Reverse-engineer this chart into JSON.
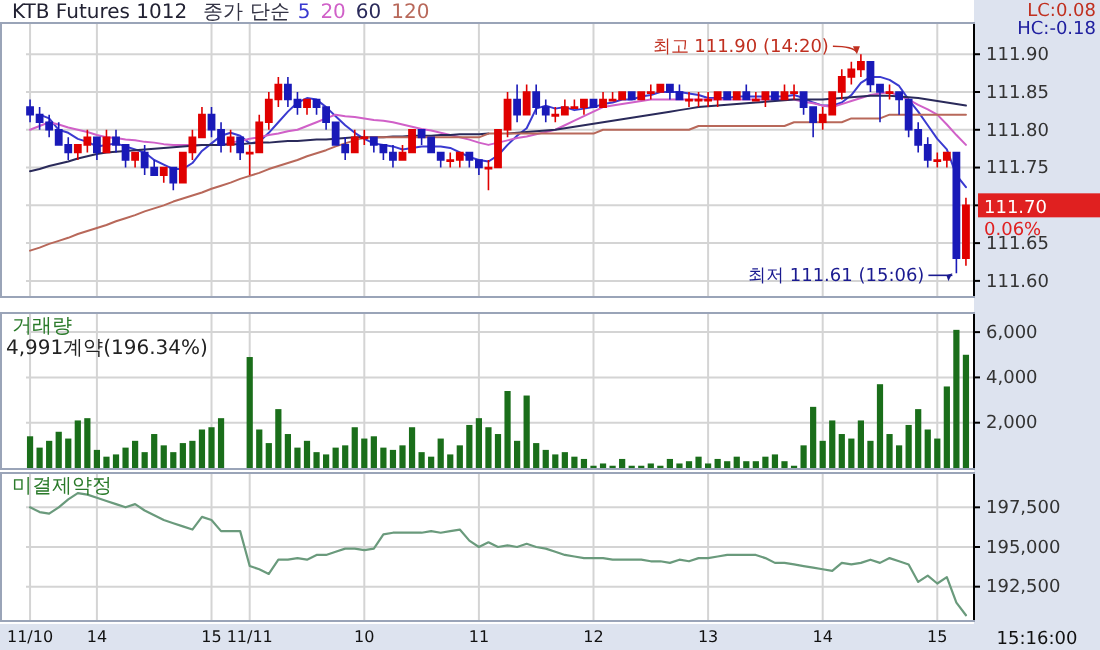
{
  "chart_data": [
    {
      "type": "candlestick",
      "title": "KTB Futures 1012",
      "legend_title": "종가 단순",
      "legend": "top left",
      "grid": true,
      "tick_labels": "y",
      "categories": [
        null,
        null,
        null,
        null,
        null,
        null,
        null,
        null,
        null,
        null,
        null,
        null,
        null,
        null,
        null,
        null,
        null,
        null,
        null,
        null,
        null,
        null,
        null,
        null,
        null,
        null,
        null,
        null,
        null,
        null,
        null,
        null,
        null,
        null,
        null,
        null,
        null,
        null,
        null,
        null,
        null,
        null,
        null,
        null,
        null,
        null,
        null,
        null,
        null,
        null,
        null,
        null,
        null,
        null,
        null,
        null,
        null,
        null,
        null,
        null,
        null,
        null,
        null,
        null,
        null,
        null,
        null,
        null,
        null,
        null,
        null,
        null,
        null,
        null,
        null,
        null,
        null,
        null,
        null,
        null,
        null,
        null,
        null,
        null,
        null,
        null,
        null,
        null,
        null,
        null,
        null,
        null,
        null,
        null,
        null,
        null,
        null,
        null,
        null
      ],
      "ylim": [
        111.58,
        111.94
      ],
      "yticks": [
        {
          "value": 111.6,
          "label": "111.60"
        },
        {
          "value": 111.65,
          "label": "111.65"
        },
        {
          "value": 111.7,
          "label": null
        },
        {
          "value": 111.75,
          "label": "111.75"
        },
        {
          "value": 111.8,
          "label": "111.80"
        },
        {
          "value": 111.85,
          "label": "111.85"
        },
        {
          "value": 111.9,
          "label": "111.90"
        }
      ],
      "ohlc": [
        [
          111.83,
          111.84,
          111.81,
          111.82
        ],
        [
          111.82,
          111.83,
          111.8,
          111.81
        ],
        [
          111.81,
          111.82,
          111.79,
          111.8
        ],
        [
          111.8,
          111.81,
          111.78,
          111.78
        ],
        [
          111.78,
          111.79,
          111.76,
          111.77
        ],
        [
          111.77,
          111.78,
          111.76,
          111.78
        ],
        [
          111.78,
          111.8,
          111.77,
          111.79
        ],
        [
          111.79,
          111.79,
          111.76,
          111.77
        ],
        [
          111.77,
          111.8,
          111.77,
          111.79
        ],
        [
          111.79,
          111.8,
          111.77,
          111.78
        ],
        [
          111.78,
          111.78,
          111.75,
          111.76
        ],
        [
          111.76,
          111.77,
          111.75,
          111.77
        ],
        [
          111.77,
          111.78,
          111.74,
          111.75
        ],
        [
          111.75,
          111.76,
          111.74,
          111.74
        ],
        [
          111.74,
          111.75,
          111.73,
          111.75
        ],
        [
          111.75,
          111.75,
          111.72,
          111.73
        ],
        [
          111.73,
          111.77,
          111.73,
          111.77
        ],
        [
          111.77,
          111.8,
          111.76,
          111.79
        ],
        [
          111.79,
          111.83,
          111.79,
          111.82
        ],
        [
          111.82,
          111.83,
          111.79,
          111.8
        ],
        [
          111.8,
          111.81,
          111.77,
          111.78
        ],
        [
          111.78,
          111.8,
          111.77,
          111.79
        ],
        [
          111.79,
          111.79,
          111.76,
          111.77
        ],
        [
          111.77,
          111.78,
          111.74,
          111.77
        ],
        [
          111.77,
          111.82,
          111.77,
          111.81
        ],
        [
          111.81,
          111.85,
          111.8,
          111.84
        ],
        [
          111.84,
          111.87,
          111.83,
          111.86
        ],
        [
          111.86,
          111.87,
          111.83,
          111.84
        ],
        [
          111.84,
          111.85,
          111.82,
          111.83
        ],
        [
          111.83,
          111.84,
          111.82,
          111.84
        ],
        [
          111.84,
          111.84,
          111.82,
          111.83
        ],
        [
          111.83,
          111.83,
          111.8,
          111.81
        ],
        [
          111.81,
          111.81,
          111.78,
          111.78
        ],
        [
          111.78,
          111.79,
          111.76,
          111.77
        ],
        [
          111.77,
          111.8,
          111.77,
          111.79
        ],
        [
          111.79,
          111.8,
          111.78,
          111.79
        ],
        [
          111.79,
          111.79,
          111.77,
          111.78
        ],
        [
          111.78,
          111.78,
          111.76,
          111.77
        ],
        [
          111.77,
          111.78,
          111.75,
          111.76
        ],
        [
          111.76,
          111.78,
          111.76,
          111.77
        ],
        [
          111.77,
          111.8,
          111.77,
          111.8
        ],
        [
          111.8,
          111.8,
          111.78,
          111.79
        ],
        [
          111.79,
          111.79,
          111.77,
          111.77
        ],
        [
          111.77,
          111.77,
          111.75,
          111.76
        ],
        [
          111.76,
          111.77,
          111.75,
          111.76
        ],
        [
          111.76,
          111.77,
          111.75,
          111.77
        ],
        [
          111.77,
          111.77,
          111.75,
          111.76
        ],
        [
          111.76,
          111.76,
          111.74,
          111.75
        ],
        [
          111.75,
          111.76,
          111.72,
          111.75
        ],
        [
          111.75,
          111.8,
          111.75,
          111.8
        ],
        [
          111.8,
          111.85,
          111.79,
          111.84
        ],
        [
          111.84,
          111.86,
          111.81,
          111.82
        ],
        [
          111.82,
          111.86,
          111.82,
          111.85
        ],
        [
          111.85,
          111.86,
          111.82,
          111.83
        ],
        [
          111.83,
          111.84,
          111.81,
          111.82
        ],
        [
          111.82,
          111.83,
          111.81,
          111.82
        ],
        [
          111.82,
          111.84,
          111.82,
          111.83
        ],
        [
          111.83,
          111.84,
          111.83,
          111.83
        ],
        [
          111.83,
          111.84,
          111.82,
          111.84
        ],
        [
          111.84,
          111.84,
          111.83,
          111.83
        ],
        [
          111.83,
          111.85,
          111.83,
          111.84
        ],
        [
          111.84,
          111.85,
          111.84,
          111.84
        ],
        [
          111.84,
          111.85,
          111.84,
          111.85
        ],
        [
          111.85,
          111.85,
          111.84,
          111.84
        ],
        [
          111.84,
          111.85,
          111.84,
          111.85
        ],
        [
          111.85,
          111.86,
          111.84,
          111.85
        ],
        [
          111.85,
          111.86,
          111.85,
          111.86
        ],
        [
          111.86,
          111.86,
          111.84,
          111.85
        ],
        [
          111.85,
          111.86,
          111.84,
          111.84
        ],
        [
          111.84,
          111.85,
          111.83,
          111.84
        ],
        [
          111.84,
          111.85,
          111.83,
          111.84
        ],
        [
          111.84,
          111.85,
          111.83,
          111.84
        ],
        [
          111.84,
          111.85,
          111.83,
          111.85
        ],
        [
          111.85,
          111.85,
          111.84,
          111.84
        ],
        [
          111.84,
          111.85,
          111.84,
          111.85
        ],
        [
          111.85,
          111.86,
          111.84,
          111.84
        ],
        [
          111.84,
          111.85,
          111.84,
          111.84
        ],
        [
          111.84,
          111.85,
          111.83,
          111.85
        ],
        [
          111.85,
          111.85,
          111.84,
          111.84
        ],
        [
          111.84,
          111.86,
          111.84,
          111.85
        ],
        [
          111.85,
          111.86,
          111.84,
          111.85
        ],
        [
          111.85,
          111.85,
          111.82,
          111.83
        ],
        [
          111.83,
          111.83,
          111.79,
          111.81
        ],
        [
          111.81,
          111.83,
          111.8,
          111.82
        ],
        [
          111.82,
          111.85,
          111.82,
          111.85
        ],
        [
          111.85,
          111.88,
          111.84,
          111.87
        ],
        [
          111.87,
          111.89,
          111.86,
          111.88
        ],
        [
          111.88,
          111.9,
          111.87,
          111.89
        ],
        [
          111.89,
          111.89,
          111.85,
          111.86
        ],
        [
          111.86,
          111.86,
          111.81,
          111.85
        ],
        [
          111.85,
          111.86,
          111.84,
          111.85
        ],
        [
          111.85,
          111.85,
          111.82,
          111.84
        ],
        [
          111.84,
          111.84,
          111.79,
          111.8
        ],
        [
          111.8,
          111.81,
          111.77,
          111.78
        ],
        [
          111.78,
          111.79,
          111.75,
          111.76
        ],
        [
          111.76,
          111.77,
          111.75,
          111.76
        ],
        [
          111.76,
          111.77,
          111.75,
          111.77
        ],
        [
          111.77,
          111.77,
          111.61,
          111.63
        ],
        [
          111.63,
          111.71,
          111.62,
          111.7
        ]
      ],
      "series": [
        {
          "name": "5",
          "type": "line",
          "color": "#3a3ad0",
          "values": [
            null,
            111.82,
            111.815,
            111.8,
            111.796,
            111.788,
            111.784,
            111.778,
            111.78,
            111.782,
            111.778,
            111.774,
            111.77,
            111.76,
            111.754,
            111.748,
            111.748,
            111.756,
            111.772,
            111.782,
            111.792,
            111.796,
            111.792,
            111.782,
            111.784,
            111.796,
            111.81,
            111.824,
            111.836,
            111.842,
            111.84,
            111.83,
            111.818,
            111.806,
            111.796,
            111.788,
            111.782,
            111.78,
            111.778,
            111.774,
            111.776,
            111.778,
            111.778,
            111.778,
            111.776,
            111.77,
            111.764,
            111.76,
            111.758,
            111.766,
            111.78,
            111.792,
            111.802,
            111.828,
            111.832,
            111.828,
            111.83,
            111.826,
            111.828,
            111.83,
            111.834,
            111.836,
            111.84,
            111.84,
            111.844,
            111.846,
            111.85,
            111.85,
            111.85,
            111.848,
            111.846,
            111.842,
            111.842,
            111.842,
            111.844,
            111.844,
            111.844,
            111.844,
            111.844,
            111.844,
            111.846,
            111.842,
            111.836,
            111.832,
            111.832,
            111.836,
            111.846,
            111.862,
            111.87,
            111.87,
            111.866,
            111.858,
            111.84,
            111.824,
            111.806,
            111.788,
            111.774,
            111.74,
            111.724
          ]
        },
        {
          "name": "20",
          "type": "line",
          "color": "#d060c8",
          "values": [
            111.8,
            111.805,
            111.81,
            111.807,
            111.803,
            111.8,
            111.797,
            111.793,
            111.79,
            111.789,
            111.787,
            111.786,
            111.784,
            111.783,
            111.781,
            111.78,
            111.78,
            111.78,
            111.78,
            111.78,
            111.78,
            111.783,
            111.785,
            111.788,
            111.79,
            111.793,
            111.795,
            111.798,
            111.8,
            111.805,
            111.81,
            111.815,
            111.82,
            111.818,
            111.817,
            111.815,
            111.813,
            111.812,
            111.81,
            111.807,
            111.804,
            111.801,
            111.799,
            111.796,
            111.793,
            111.79,
            111.787,
            111.783,
            111.78,
            111.783,
            111.786,
            111.789,
            111.791,
            111.794,
            111.797,
            111.8,
            111.806,
            111.812,
            111.818,
            111.824,
            111.83,
            111.832,
            111.834,
            111.836,
            111.838,
            111.84,
            111.84,
            111.84,
            111.84,
            111.84,
            111.84,
            111.84,
            111.84,
            111.84,
            111.84,
            111.84,
            111.84,
            111.84,
            111.84,
            111.84,
            111.84,
            111.837,
            111.835,
            111.832,
            111.83,
            111.834,
            111.838,
            111.842,
            111.846,
            111.848,
            111.85,
            111.845,
            111.84,
            111.833,
            111.827,
            111.82,
            111.807,
            111.793,
            111.78
          ]
        },
        {
          "name": "60",
          "type": "line",
          "color": "#2a2a5a",
          "values": [
            111.745,
            111.748,
            111.752,
            111.755,
            111.758,
            111.762,
            111.765,
            111.768,
            111.77,
            111.771,
            111.772,
            111.773,
            111.774,
            111.775,
            111.776,
            111.777,
            111.778,
            111.779,
            111.78,
            111.78,
            111.78,
            111.781,
            111.781,
            111.782,
            111.783,
            111.783,
            111.784,
            111.785,
            111.785,
            111.786,
            111.787,
            111.787,
            111.788,
            111.789,
            111.79,
            111.79,
            111.79,
            111.79,
            111.791,
            111.791,
            111.792,
            111.792,
            111.792,
            111.793,
            111.793,
            111.794,
            111.794,
            111.794,
            111.795,
            null,
            111.795,
            111.796,
            111.797,
            111.798,
            111.799,
            111.8,
            111.802,
            111.804,
            111.806,
            111.808,
            111.81,
            111.812,
            111.814,
            111.816,
            111.818,
            111.82,
            111.822,
            111.824,
            111.826,
            111.828,
            111.83,
            111.831,
            111.832,
            111.833,
            111.834,
            111.835,
            111.836,
            111.837,
            111.838,
            111.839,
            111.84,
            111.84,
            111.84,
            111.84,
            111.841,
            111.842,
            111.843,
            111.844,
            111.845,
            111.845,
            111.845,
            111.844,
            111.843,
            111.842,
            111.84,
            111.838,
            111.836,
            111.834,
            111.832
          ]
        },
        {
          "name": "120",
          "type": "line",
          "color": "#b8685a",
          "values": [
            111.64,
            111.644,
            111.649,
            111.653,
            111.657,
            111.662,
            111.666,
            111.67,
            111.674,
            111.679,
            111.683,
            111.687,
            111.692,
            111.696,
            111.7,
            111.705,
            111.709,
            111.713,
            111.717,
            111.722,
            111.726,
            111.73,
            111.735,
            111.739,
            111.743,
            111.748,
            111.752,
            111.756,
            111.76,
            111.765,
            111.769,
            111.773,
            111.778,
            111.782,
            111.786,
            111.79,
            111.79,
            111.79,
            111.79,
            111.79,
            111.79,
            111.79,
            111.79,
            111.79,
            111.79,
            111.79,
            111.79,
            111.79,
            111.795,
            111.795,
            111.795,
            111.795,
            111.795,
            111.795,
            111.795,
            111.795,
            111.795,
            111.795,
            111.795,
            111.795,
            111.8,
            111.8,
            111.8,
            111.8,
            111.8,
            111.8,
            111.8,
            111.8,
            111.8,
            111.8,
            111.805,
            111.805,
            111.805,
            111.805,
            111.805,
            111.805,
            111.805,
            111.805,
            111.805,
            111.805,
            111.81,
            111.81,
            111.81,
            111.81,
            111.81,
            111.81,
            111.815,
            111.815,
            111.815,
            111.815,
            111.82,
            111.82,
            111.82,
            111.82,
            111.82,
            111.82,
            111.82,
            111.82,
            111.82
          ]
        }
      ],
      "annotations": [
        "최고 111.90 (14:20)",
        "최저 111.61 (15:06)",
        "111.70",
        "0.06%",
        "LC:0.08",
        "HC:-0.18"
      ]
    },
    {
      "type": "bar",
      "title": "거래량",
      "subtitle": "4,991계약(196.34%)",
      "grid": true,
      "tick_labels": "y",
      "color": "#1a6e1a",
      "categories": [
        null,
        null,
        null,
        null,
        null,
        null,
        null,
        null,
        null,
        null,
        null,
        null,
        null,
        null,
        null,
        null,
        null,
        null,
        null,
        null,
        null,
        null,
        null,
        null,
        null,
        null,
        null,
        null,
        null,
        null,
        null,
        null,
        null,
        null,
        null,
        null,
        null,
        null,
        null,
        null,
        null,
        null,
        null,
        null,
        null,
        null,
        null,
        null,
        null,
        null,
        null,
        null,
        null,
        null,
        null,
        null,
        null,
        null,
        null,
        null,
        null,
        null,
        null,
        null,
        null,
        null,
        null,
        null,
        null,
        null,
        null,
        null,
        null,
        null,
        null,
        null,
        null,
        null,
        null,
        null,
        null,
        null,
        null,
        null,
        null,
        null,
        null,
        null,
        null,
        null,
        null,
        null,
        null,
        null,
        null,
        null,
        null,
        null,
        null
      ],
      "ylim": [
        0,
        6800
      ],
      "yticks": [
        {
          "value": 2000,
          "label": "2,000"
        },
        {
          "value": 4000,
          "label": "4,000"
        },
        {
          "value": 6000,
          "label": "6,000"
        }
      ],
      "values": [
        1400,
        900,
        1200,
        1600,
        1300,
        2100,
        2200,
        800,
        500,
        600,
        900,
        1200,
        700,
        1500,
        1000,
        700,
        1100,
        1200,
        1700,
        1800,
        2200,
        0,
        0,
        4900,
        1700,
        1100,
        2600,
        1500,
        900,
        1200,
        700,
        600,
        900,
        1000,
        1800,
        1300,
        1400,
        900,
        800,
        1000,
        1800,
        700,
        500,
        1300,
        600,
        1000,
        1900,
        2200,
        1800,
        1500,
        3400,
        1200,
        3200,
        1100,
        800,
        600,
        700,
        500,
        400,
        100,
        200,
        100,
        400,
        100,
        100,
        200,
        100,
        400,
        200,
        300,
        500,
        200,
        400,
        300,
        500,
        300,
        300,
        500,
        600,
        300,
        100,
        1000,
        2700,
        1200,
        2100,
        1500,
        1300,
        2100,
        1200,
        3700,
        1500,
        1000,
        1900,
        2600,
        1700,
        1300,
        3600,
        6100,
        5000
      ]
    },
    {
      "type": "line",
      "title": "미결제약정",
      "grid": true,
      "color": "#6a9a7c",
      "categories": [
        "11/10",
        null,
        null,
        null,
        null,
        null,
        null,
        "14",
        null,
        null,
        null,
        null,
        null,
        null,
        null,
        null,
        null,
        null,
        null,
        "15",
        null,
        null,
        null,
        "11/11",
        null,
        null,
        null,
        null,
        null,
        null,
        null,
        null,
        null,
        null,
        null,
        "10",
        null,
        null,
        null,
        null,
        null,
        null,
        null,
        null,
        null,
        null,
        null,
        "11",
        null,
        null,
        null,
        null,
        null,
        null,
        null,
        null,
        null,
        null,
        null,
        "12",
        null,
        null,
        null,
        null,
        null,
        null,
        null,
        null,
        null,
        null,
        null,
        "13",
        null,
        null,
        null,
        null,
        null,
        null,
        null,
        null,
        null,
        null,
        null,
        "14",
        null,
        null,
        null,
        null,
        null,
        null,
        null,
        null,
        null,
        null,
        null,
        "15",
        null,
        null,
        null
      ],
      "ylim": [
        190400,
        199600
      ],
      "yticks": [
        {
          "value": 192500,
          "label": "192,500"
        },
        {
          "value": 195000,
          "label": "195,000"
        },
        {
          "value": 197500,
          "label": "197,500"
        }
      ],
      "values": [
        197500,
        197200,
        197100,
        197500,
        198000,
        198400,
        198300,
        198100,
        197900,
        197700,
        197500,
        197700,
        197300,
        197000,
        196700,
        196500,
        196300,
        196100,
        196900,
        196700,
        196000,
        196000,
        196000,
        193800,
        193600,
        193300,
        194200,
        194200,
        194300,
        194200,
        194500,
        194500,
        194700,
        194900,
        194900,
        194800,
        194900,
        195800,
        195900,
        195900,
        195900,
        195900,
        196000,
        195900,
        196000,
        196100,
        195400,
        195000,
        195300,
        195000,
        195100,
        195000,
        195200,
        195000,
        194900,
        194700,
        194500,
        194400,
        194300,
        194300,
        194300,
        194200,
        194200,
        194200,
        194200,
        194100,
        194100,
        194000,
        194200,
        194100,
        194300,
        194300,
        194400,
        194500,
        194500,
        194500,
        194500,
        194300,
        194000,
        194000,
        193900,
        193800,
        193700,
        193600,
        193500,
        194000,
        193900,
        194000,
        194200,
        194000,
        194300,
        194100,
        193900,
        192800,
        193200,
        192700,
        193100,
        191500,
        190700
      ],
      "annotations": [
        "15:16:00"
      ]
    }
  ]
}
